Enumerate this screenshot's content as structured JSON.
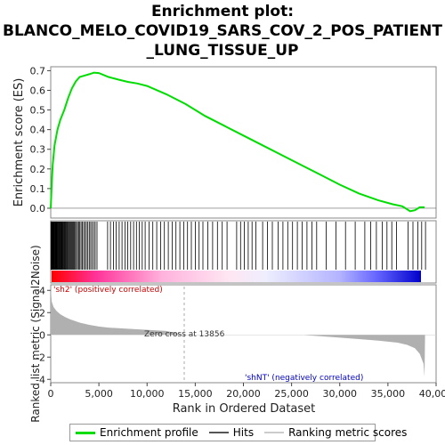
{
  "title_lines": [
    "Enrichment plot:",
    "BLANCO_MELO_COVID19_SARS_COV_2_POS_PATIENT",
    "_LUNG_TISSUE_UP"
  ],
  "colors": {
    "profile": "#00dd00",
    "hits": "#000000",
    "metric_fill": "#b0b0b0",
    "pos_label": "#cc0000",
    "neg_label": "#0000cc",
    "zero_line": "#aaaaaa"
  },
  "chart_data": [
    {
      "type": "line",
      "name": "enrichment-profile",
      "ylabel": "Enrichment score (ES)",
      "xlim": [
        0,
        40000
      ],
      "ylim": [
        -0.05,
        0.72
      ],
      "yticks": [
        "0.0",
        "0.1",
        "0.2",
        "0.3",
        "0.4",
        "0.5",
        "0.6",
        "0.7"
      ],
      "ytick_values": [
        0.0,
        0.1,
        0.2,
        0.3,
        0.4,
        0.5,
        0.6,
        0.7
      ],
      "grid": false,
      "points": [
        [
          0,
          0.0
        ],
        [
          100,
          0.12
        ],
        [
          200,
          0.22
        ],
        [
          400,
          0.32
        ],
        [
          700,
          0.4
        ],
        [
          1000,
          0.45
        ],
        [
          1400,
          0.5
        ],
        [
          1800,
          0.56
        ],
        [
          2200,
          0.61
        ],
        [
          2600,
          0.645
        ],
        [
          3000,
          0.668
        ],
        [
          3500,
          0.675
        ],
        [
          4000,
          0.682
        ],
        [
          4500,
          0.69
        ],
        [
          5000,
          0.688
        ],
        [
          6000,
          0.668
        ],
        [
          7000,
          0.655
        ],
        [
          8000,
          0.643
        ],
        [
          9000,
          0.635
        ],
        [
          10000,
          0.622
        ],
        [
          12000,
          0.58
        ],
        [
          14000,
          0.53
        ],
        [
          16000,
          0.47
        ],
        [
          18000,
          0.42
        ],
        [
          20000,
          0.37
        ],
        [
          22000,
          0.32
        ],
        [
          24000,
          0.27
        ],
        [
          26000,
          0.22
        ],
        [
          28000,
          0.17
        ],
        [
          30000,
          0.12
        ],
        [
          32000,
          0.075
        ],
        [
          34000,
          0.04
        ],
        [
          35500,
          0.02
        ],
        [
          36500,
          0.01
        ],
        [
          37300,
          -0.015
        ],
        [
          37800,
          -0.01
        ],
        [
          38300,
          0.005
        ],
        [
          38800,
          0.005
        ]
      ]
    },
    {
      "type": "bar",
      "name": "hits",
      "description_visible": "Hits",
      "x": [
        20,
        60,
        100,
        140,
        180,
        220,
        260,
        300,
        340,
        380,
        420,
        470,
        520,
        570,
        620,
        680,
        740,
        800,
        860,
        920,
        980,
        1050,
        1120,
        1190,
        1260,
        1330,
        1400,
        1480,
        1560,
        1640,
        1720,
        1800,
        1890,
        1980,
        2070,
        2160,
        2250,
        2350,
        2450,
        2560,
        2670,
        2780,
        2900,
        3020,
        3150,
        3280,
        3420,
        3560,
        3700,
        3850,
        4000,
        4150,
        4300,
        4460,
        4620,
        4800,
        5900,
        6200,
        6500,
        6800,
        7100,
        7400,
        7700,
        8000,
        8300,
        8600,
        8900,
        9200,
        9500,
        9800,
        10200,
        10600,
        11000,
        11400,
        11800,
        12200,
        12600,
        13000,
        13400,
        13800,
        14200,
        14600,
        15000,
        15400,
        15800,
        16300,
        16800,
        17300,
        17800,
        18300,
        19300,
        19700,
        20100,
        20500,
        20900,
        21300,
        22000,
        22500,
        23000,
        23600,
        24100,
        24600,
        25100,
        25600,
        26100,
        26600,
        27100,
        27600,
        28600,
        29600,
        30600,
        31600,
        32600,
        33200,
        33800,
        34400,
        34900,
        35400,
        35900,
        37100,
        37600,
        38100,
        38500,
        38900
      ]
    },
    {
      "type": "area",
      "name": "ranked-list-metric",
      "ylabel": "Ranked list metric (Signal2Noise)",
      "xlabel": "Rank in Ordered Dataset",
      "xlim": [
        0,
        40000
      ],
      "ylim": [
        -4.3,
        4.5
      ],
      "xticks": [
        "0",
        "5,000",
        "10,000",
        "15,000",
        "20,000",
        "25,000",
        "30,000",
        "35,000",
        "40,000"
      ],
      "xtick_values": [
        0,
        5000,
        10000,
        15000,
        20000,
        25000,
        30000,
        35000,
        40000
      ],
      "yticks": [
        "4",
        "2",
        "0",
        "-2",
        "-4"
      ],
      "ytick_values": [
        4,
        2,
        0,
        -2,
        -4
      ],
      "points": [
        [
          0,
          4.3
        ],
        [
          100,
          3.0
        ],
        [
          300,
          2.5
        ],
        [
          600,
          2.15
        ],
        [
          1000,
          1.85
        ],
        [
          1500,
          1.6
        ],
        [
          2000,
          1.4
        ],
        [
          3000,
          1.1
        ],
        [
          4000,
          0.9
        ],
        [
          5000,
          0.75
        ],
        [
          6000,
          0.65
        ],
        [
          8000,
          0.55
        ],
        [
          10000,
          0.45
        ],
        [
          12000,
          0.35
        ],
        [
          13856,
          0.0
        ],
        [
          26000,
          0.0
        ],
        [
          28000,
          -0.12
        ],
        [
          30000,
          -0.25
        ],
        [
          32000,
          -0.38
        ],
        [
          34000,
          -0.52
        ],
        [
          36000,
          -0.7
        ],
        [
          37000,
          -0.9
        ],
        [
          37800,
          -1.2
        ],
        [
          38300,
          -1.7
        ],
        [
          38700,
          -2.6
        ],
        [
          38800,
          -3.8
        ],
        [
          38850,
          0.0
        ]
      ],
      "zero_cross": 13856,
      "annotations": {
        "zero_cross_text": "Zero cross at 13856",
        "positive_text": "'sh2' (positively correlated)",
        "negative_text": "'shNT' (negatively correlated)"
      }
    }
  ],
  "legend": {
    "items": [
      {
        "label": "Enrichment profile",
        "color": "#00dd00"
      },
      {
        "label": "Hits",
        "color": "#555555"
      },
      {
        "label": "Ranking metric scores",
        "color": "#cccccc"
      }
    ]
  }
}
